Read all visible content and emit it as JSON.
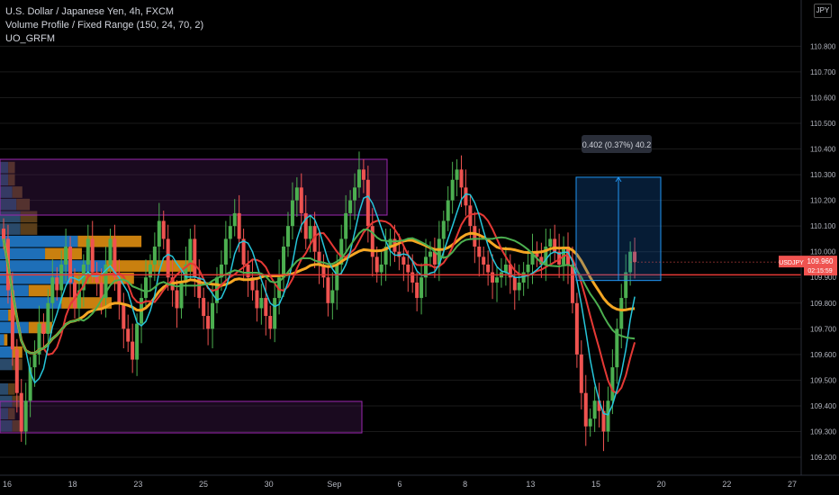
{
  "legend": {
    "symbol": "U.S. Dollar / Japanese Yen, 4h, FXCM",
    "indicator1": "Volume Profile / Fixed Range (150, 24, 70, 2)",
    "indicator2": "UO_GRFM"
  },
  "currency_button": "JPY",
  "price_tag": {
    "symbol": "USDJPY",
    "price": "109.960",
    "countdown": "02:15:59"
  },
  "measure_label": "0.402 (0.37%) 40.2",
  "colors": {
    "up": "#4caf50",
    "down": "#ef5350",
    "orange": "#f5a623",
    "red_line": "#e53935",
    "blue": "#2196f3"
  },
  "chart_data": {
    "type": "candlestick",
    "symbol": "USDJPY",
    "timeframe": "4h",
    "y_ticks": [
      109.2,
      109.3,
      109.4,
      109.5,
      109.6,
      109.7,
      109.8,
      109.9,
      110.0,
      110.1,
      110.2,
      110.3,
      110.4,
      110.5,
      110.6,
      110.7,
      110.8
    ],
    "y_tick_labels": [
      "109.200",
      "109.300",
      "109.400",
      "109.500",
      "109.600",
      "109.700",
      "109.800",
      "109.900",
      "110.000",
      "110.100",
      "110.200",
      "110.300",
      "110.400",
      "110.500",
      "110.600",
      "110.700",
      "110.800"
    ],
    "ylim": [
      109.13,
      110.98
    ],
    "x_labels": [
      "16",
      "18",
      "23",
      "25",
      "30",
      "Sep",
      "6",
      "8",
      "13",
      "15",
      "20",
      "22",
      "27"
    ],
    "horizontal_line": 109.91,
    "last_price": 109.96,
    "measurement": {
      "price_change": 0.402,
      "percent": "0.37%",
      "pips": 40.2,
      "from": 109.888,
      "to": 110.29
    },
    "candles_close": [
      110.05,
      109.85,
      109.62,
      109.45,
      109.3,
      109.42,
      109.55,
      109.6,
      109.72,
      109.68,
      109.8,
      109.9,
      109.85,
      109.95,
      110.02,
      109.88,
      109.78,
      109.85,
      109.95,
      110.05,
      109.92,
      109.88,
      109.82,
      109.95,
      110.05,
      109.9,
      109.8,
      109.7,
      109.65,
      109.58,
      109.72,
      109.82,
      109.9,
      109.95,
      110.02,
      110.12,
      110.05,
      109.9,
      109.85,
      109.78,
      109.88,
      109.95,
      110.05,
      109.9,
      109.82,
      109.75,
      109.7,
      109.8,
      109.9,
      109.95,
      110.05,
      110.1,
      110.15,
      110.05,
      109.95,
      109.9,
      109.85,
      109.78,
      109.82,
      109.75,
      109.7,
      109.82,
      109.9,
      110.02,
      110.1,
      110.2,
      110.25,
      110.15,
      110.05,
      110.1,
      110.0,
      109.95,
      109.9,
      109.8,
      109.85,
      109.95,
      110.05,
      110.15,
      110.2,
      110.25,
      110.32,
      110.28,
      110.1,
      109.98,
      109.92,
      109.95,
      110.02,
      110.05,
      110.0,
      109.98,
      109.95,
      109.92,
      109.88,
      109.82,
      109.9,
      109.98,
      110.0,
      109.95,
      110.05,
      110.12,
      110.2,
      110.28,
      110.32,
      110.25,
      110.18,
      110.1,
      110.02,
      109.98,
      109.95,
      109.92,
      109.88,
      109.9,
      109.92,
      109.95,
      109.9,
      109.85,
      109.88,
      109.92,
      109.95,
      110.0,
      109.98,
      109.95,
      110.02,
      110.05,
      110.0,
      109.95,
      110.02,
      109.95,
      109.8,
      109.6,
      109.45,
      109.32,
      109.35,
      109.42,
      109.38,
      109.3,
      109.42,
      109.55,
      109.7,
      109.82,
      109.92,
      110.0,
      109.96
    ]
  }
}
